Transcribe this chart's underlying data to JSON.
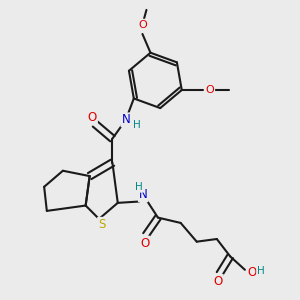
{
  "bg_color": "#ebebeb",
  "bond_color": "#1a1a1a",
  "bond_width": 1.5,
  "atom_colors": {
    "O": "#dd0000",
    "N": "#0000cc",
    "S": "#bbaa00",
    "H": "#008888",
    "C": "#1a1a1a"
  },
  "figsize": [
    3.0,
    3.0
  ],
  "dpi": 100
}
